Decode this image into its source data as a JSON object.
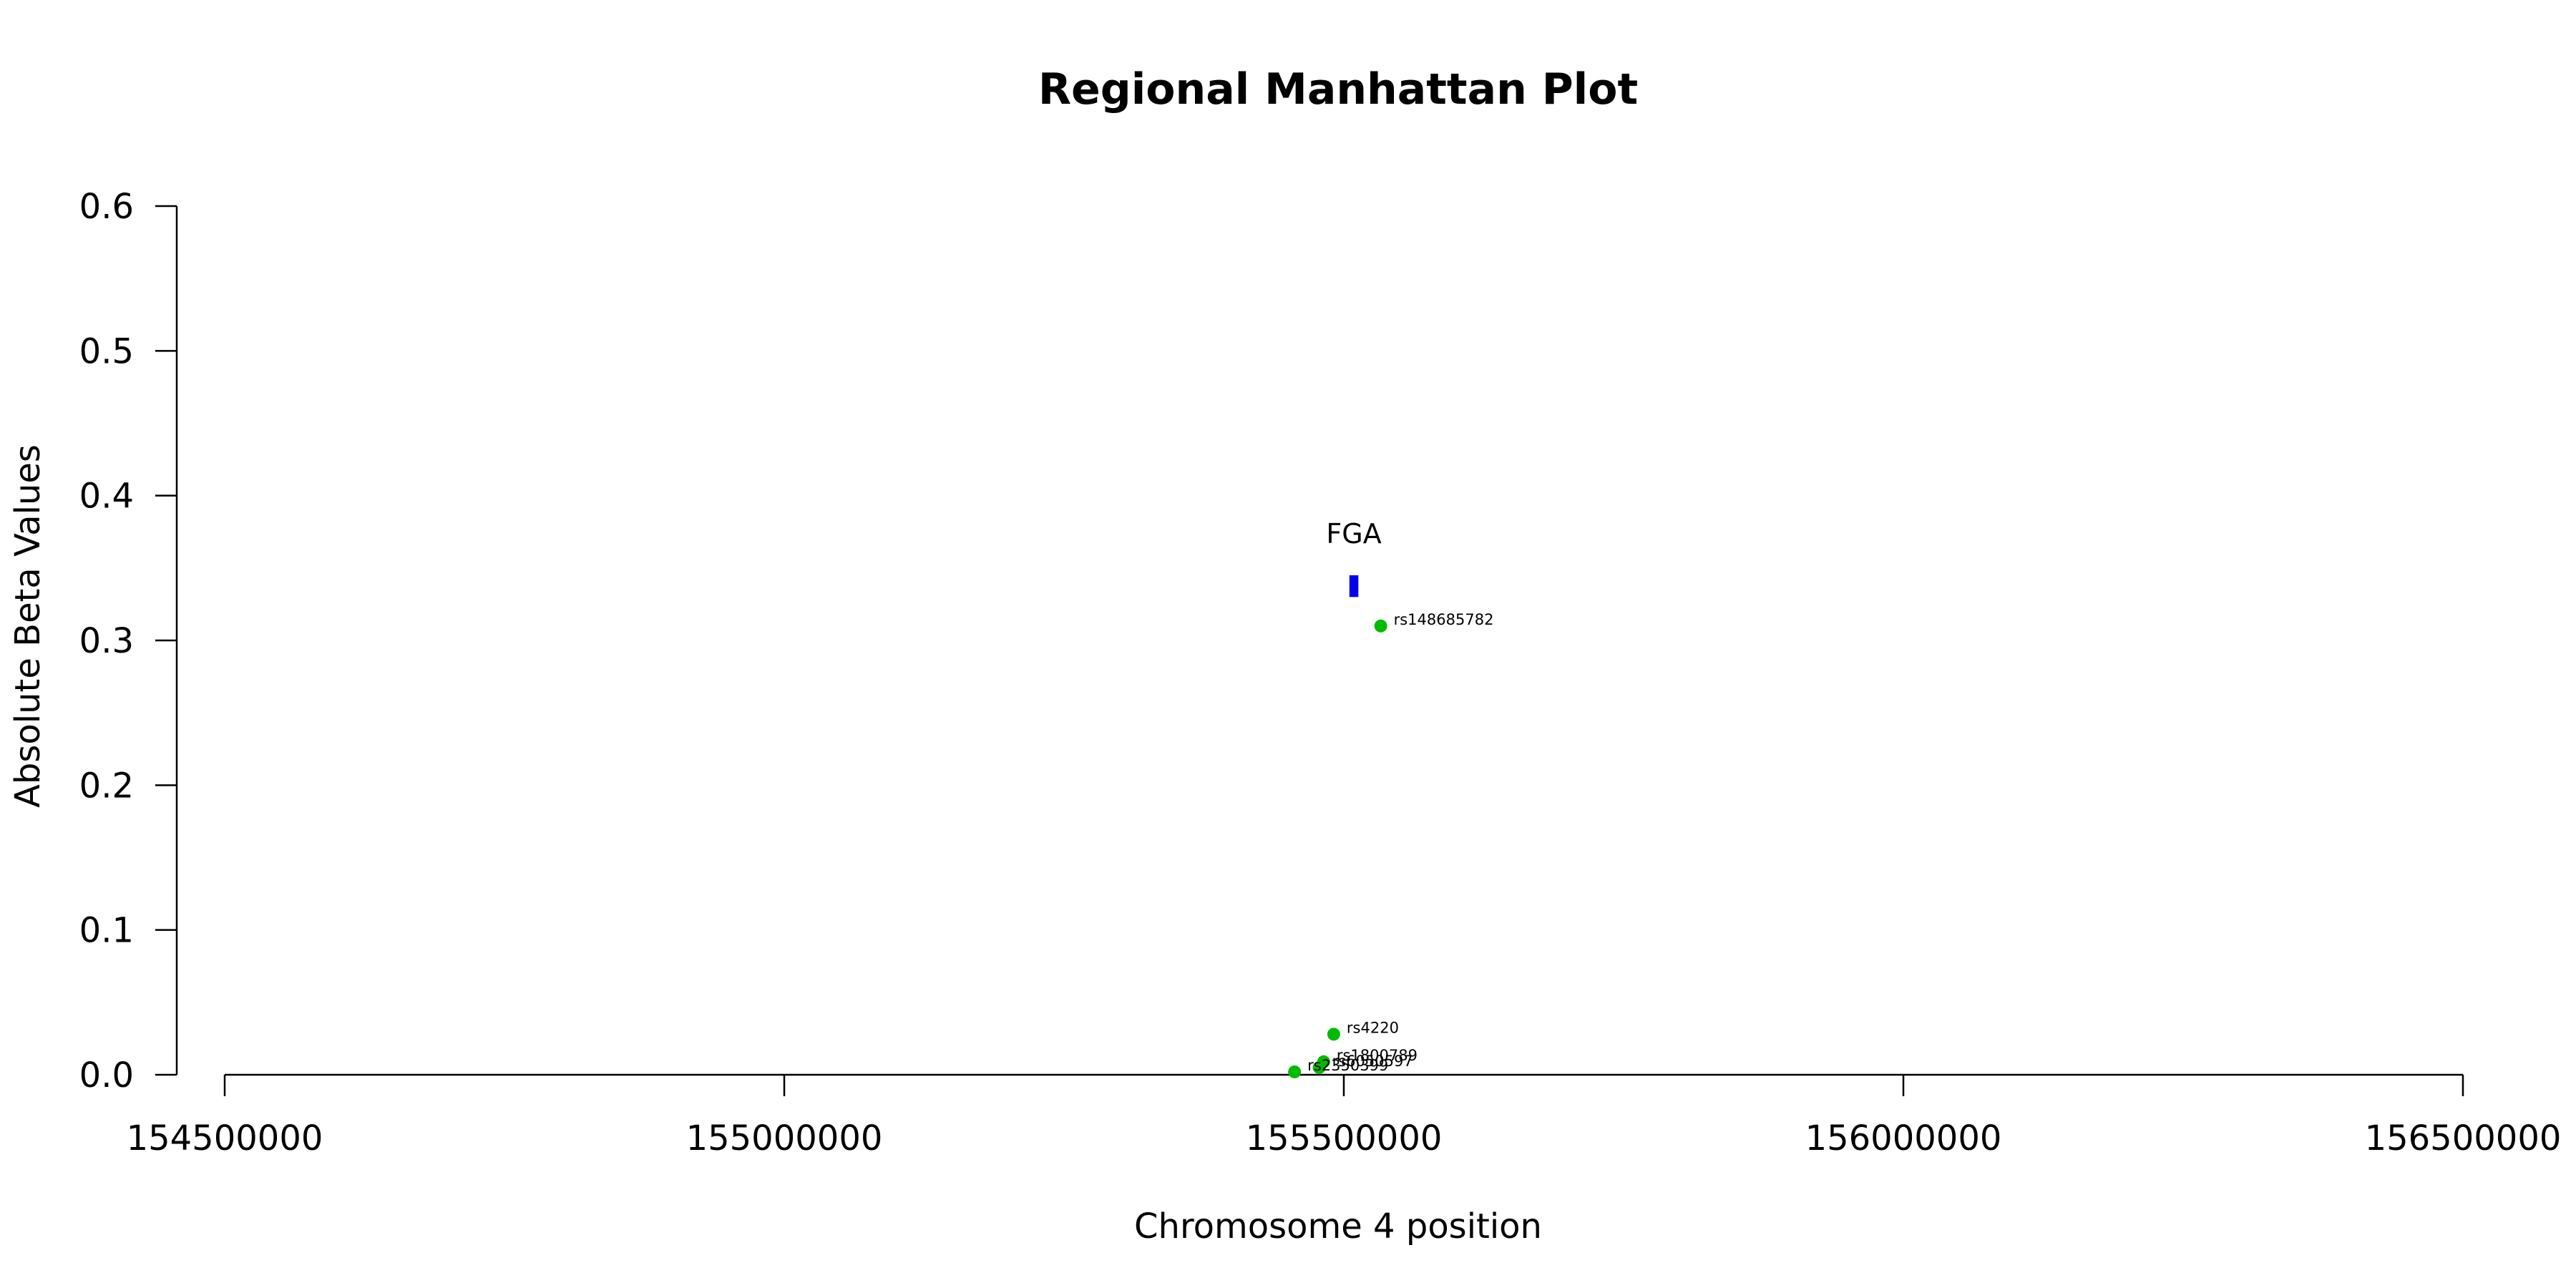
{
  "chart_data": {
    "type": "scatter",
    "title": "Regional Manhattan Plot",
    "xlabel": "Chromosome 4 position",
    "ylabel": "Absolute Beta Values",
    "xlim": [
      154500000,
      156500000
    ],
    "ylim": [
      0,
      0.6
    ],
    "x_ticks": [
      154500000,
      155000000,
      155500000,
      156000000,
      156500000
    ],
    "x_tick_labels": [
      "154500000",
      "155000000",
      "155500000",
      "156000000",
      "156500000"
    ],
    "y_ticks": [
      0.0,
      0.1,
      0.2,
      0.3,
      0.4,
      0.5,
      0.6
    ],
    "y_tick_labels": [
      "0.0",
      "0.1",
      "0.2",
      "0.3",
      "0.4",
      "0.5",
      "0.6"
    ],
    "grid": false,
    "point_color": "#00bb00",
    "points": [
      {
        "label": "rs148685782",
        "x": 155533000,
        "y": 0.31
      },
      {
        "label": "rs4220",
        "x": 155491000,
        "y": 0.028
      },
      {
        "label": "rs1800789",
        "x": 155482000,
        "y": 0.009
      },
      {
        "label": "rs6050597",
        "x": 155478000,
        "y": 0.005
      },
      {
        "label": "rs2350399",
        "x": 155456000,
        "y": 0.002
      }
    ],
    "genes": [
      {
        "label": "FGA",
        "start": 155505000,
        "end": 155513000,
        "y_bottom": 0.33,
        "y_top": 0.345,
        "color": "#0000ee"
      }
    ]
  }
}
